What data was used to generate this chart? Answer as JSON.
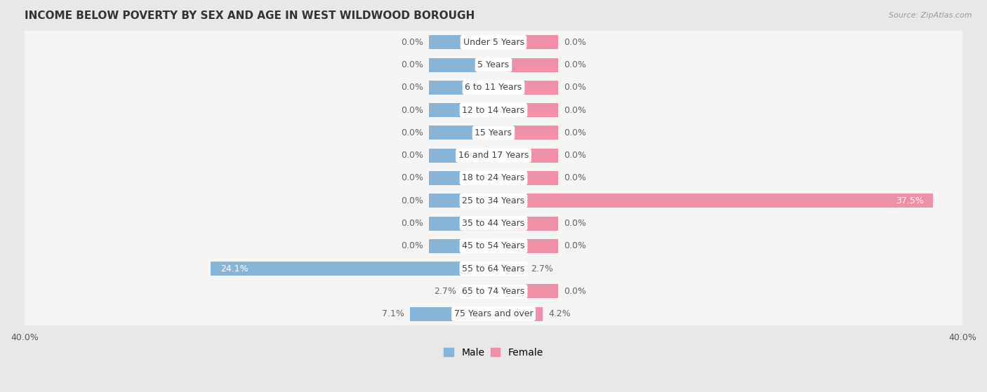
{
  "title": "INCOME BELOW POVERTY BY SEX AND AGE IN WEST WILDWOOD BOROUGH",
  "source": "Source: ZipAtlas.com",
  "categories": [
    "Under 5 Years",
    "5 Years",
    "6 to 11 Years",
    "12 to 14 Years",
    "15 Years",
    "16 and 17 Years",
    "18 to 24 Years",
    "25 to 34 Years",
    "35 to 44 Years",
    "45 to 54 Years",
    "55 to 64 Years",
    "65 to 74 Years",
    "75 Years and over"
  ],
  "male_values": [
    0.0,
    0.0,
    0.0,
    0.0,
    0.0,
    0.0,
    0.0,
    0.0,
    0.0,
    0.0,
    24.1,
    2.7,
    7.1
  ],
  "female_values": [
    0.0,
    0.0,
    0.0,
    0.0,
    0.0,
    0.0,
    0.0,
    37.5,
    0.0,
    0.0,
    2.7,
    0.0,
    4.2
  ],
  "male_color": "#88b4d8",
  "female_color": "#f090a8",
  "bg_color": "#e8e8e8",
  "row_bg_color": "#f5f5f5",
  "row_alt_bg": "#e0e0e8",
  "axis_limit": 40.0,
  "stub_size": 5.5,
  "title_fontsize": 11,
  "label_fontsize": 9,
  "cat_fontsize": 9,
  "tick_fontsize": 9,
  "legend_fontsize": 10,
  "bar_height": 0.62
}
